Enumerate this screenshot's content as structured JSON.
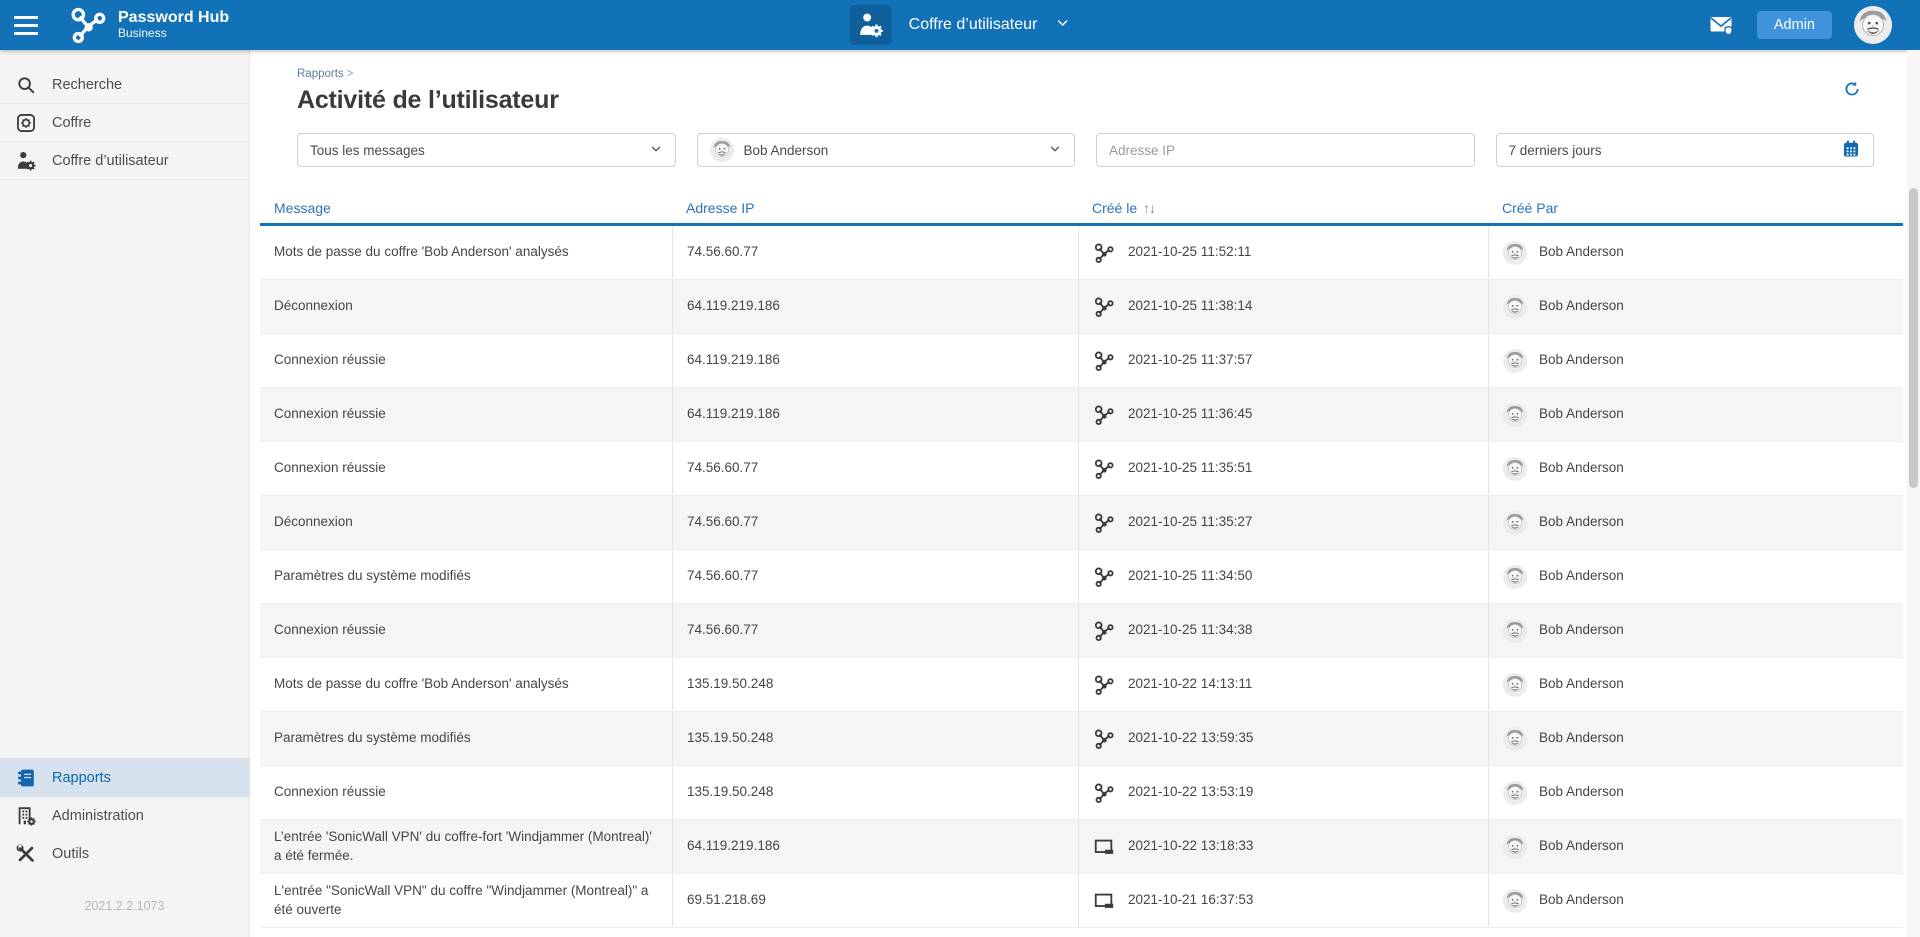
{
  "topbar": {
    "brand_line1": "Password Hub",
    "brand_line2": "Business",
    "vault_selector_label": "Coffre d’utilisateur",
    "admin_button_label": "Admin"
  },
  "sidebar": {
    "items_top": [
      {
        "label": "Recherche"
      },
      {
        "label": "Coffre"
      },
      {
        "label": "Coffre d’utilisateur"
      }
    ],
    "items_bottom": [
      {
        "label": "Rapports",
        "active": true
      },
      {
        "label": "Administration",
        "active": false
      },
      {
        "label": "Outils",
        "active": false
      }
    ],
    "version": "2021.2.2.1073"
  },
  "page": {
    "breadcrumb": "Rapports",
    "breadcrumb_separator": ">",
    "title": "Activité de l’utilisateur"
  },
  "filters": {
    "message_filter_value": "Tous les messages",
    "user_filter_value": "Bob Anderson",
    "ip_placeholder": "Adresse IP",
    "date_filter_value": "7 derniers jours"
  },
  "table": {
    "columns": [
      "Message",
      "Adresse IP",
      "Créé le",
      "Créé Par"
    ],
    "rows": [
      {
        "message": "Mots de passe du coffre 'Bob Anderson' analysés",
        "ip": "74.56.60.77",
        "icon": "hub",
        "created": "2021-10-25 11:52:11",
        "user": "Bob Anderson"
      },
      {
        "message": "Déconnexion",
        "ip": "64.119.219.186",
        "icon": "hub",
        "created": "2021-10-25 11:38:14",
        "user": "Bob Anderson"
      },
      {
        "message": "Connexion réussie",
        "ip": "64.119.219.186",
        "icon": "hub",
        "created": "2021-10-25 11:37:57",
        "user": "Bob Anderson"
      },
      {
        "message": "Connexion réussie",
        "ip": "64.119.219.186",
        "icon": "hub",
        "created": "2021-10-25 11:36:45",
        "user": "Bob Anderson"
      },
      {
        "message": "Connexion réussie",
        "ip": "74.56.60.77",
        "icon": "hub",
        "created": "2021-10-25 11:35:51",
        "user": "Bob Anderson"
      },
      {
        "message": "Déconnexion",
        "ip": "74.56.60.77",
        "icon": "hub",
        "created": "2021-10-25 11:35:27",
        "user": "Bob Anderson"
      },
      {
        "message": "Paramètres du système modifiés",
        "ip": "74.56.60.77",
        "icon": "hub",
        "created": "2021-10-25 11:34:50",
        "user": "Bob Anderson"
      },
      {
        "message": "Connexion réussie",
        "ip": "74.56.60.77",
        "icon": "hub",
        "created": "2021-10-25 11:34:38",
        "user": "Bob Anderson"
      },
      {
        "message": "Mots de passe du coffre 'Bob Anderson' analysés",
        "ip": "135.19.50.248",
        "icon": "hub",
        "created": "2021-10-22 14:13:11",
        "user": "Bob Anderson"
      },
      {
        "message": "Paramètres du système modifiés",
        "ip": "135.19.50.248",
        "icon": "hub",
        "created": "2021-10-22 13:59:35",
        "user": "Bob Anderson"
      },
      {
        "message": "Connexion réussie",
        "ip": "135.19.50.248",
        "icon": "hub",
        "created": "2021-10-22 13:53:19",
        "user": "Bob Anderson"
      },
      {
        "message": "L’entrée 'SonicWall VPN' du coffre-fort 'Windjammer (Montreal)' a été fermée.",
        "ip": "64.119.219.186",
        "icon": "window",
        "created": "2021-10-22 13:18:33",
        "user": "Bob Anderson"
      },
      {
        "message": "L'entrée \"SonicWall VPN\" du coffre \"Windjammer (Montreal)\" a été ouverte",
        "ip": "69.51.218.69",
        "icon": "window",
        "created": "2021-10-21 16:37:53",
        "user": "Bob Anderson"
      }
    ]
  },
  "colors": {
    "topbar_blue": "#1272b8",
    "admin_button_blue": "#4094dd",
    "active_item_bg": "#d5e2ee",
    "active_item_text": "#1266a9",
    "header_text_blue": "#2d72bd",
    "row_alt_bg": "#f5f5f5"
  }
}
